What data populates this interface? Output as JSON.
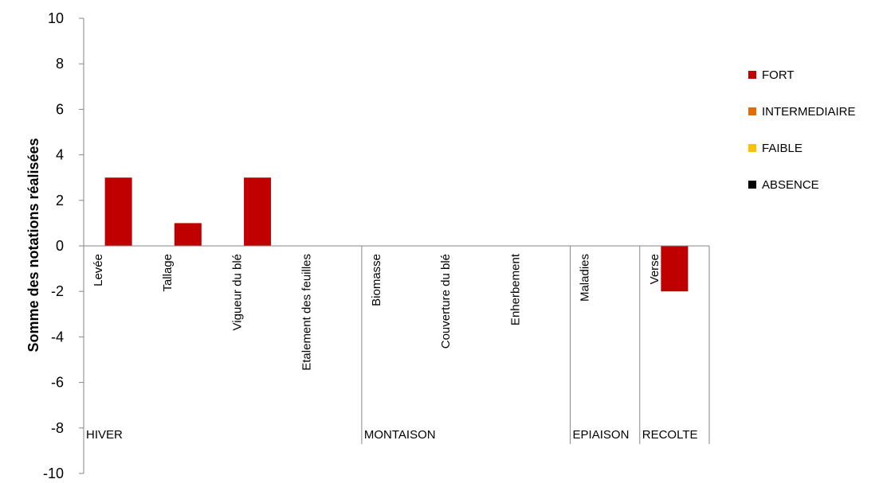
{
  "chart_data": {
    "type": "bar",
    "ylabel": "Somme des notations réalisées",
    "ylim": [
      -10,
      10
    ],
    "y_ticks": [
      "10",
      "8",
      "6",
      "4",
      "2",
      "0",
      "-2",
      "-4",
      "-6",
      "-8",
      "-10"
    ],
    "categories": [
      "Levée",
      "Tallage",
      "Vigueur du blé",
      "Etalement des feuilles",
      "Biomasse",
      "Couverture du blé",
      "Enherbement",
      "Maladies",
      "Verse"
    ],
    "groups": [
      {
        "label": "HIVER",
        "count": 4
      },
      {
        "label": "MONTAISON",
        "count": 3
      },
      {
        "label": "EPIAISON",
        "count": 1
      },
      {
        "label": "RECOLTE",
        "count": 1
      }
    ],
    "series": [
      {
        "name": "FORT",
        "color": "#c00000",
        "values": [
          3,
          1,
          3,
          0,
          0,
          0,
          0,
          0,
          -2
        ]
      },
      {
        "name": "INTERMEDIAIRE",
        "color": "#e36c09",
        "values": [
          0,
          0,
          0,
          0,
          0,
          0,
          0,
          0,
          0
        ]
      },
      {
        "name": "FAIBLE",
        "color": "#ffc000",
        "values": [
          0,
          0,
          0,
          0,
          0,
          0,
          0,
          0,
          0
        ]
      },
      {
        "name": "ABSENCE",
        "color": "#000000",
        "values": [
          0,
          0,
          0,
          0,
          0,
          0,
          0,
          0,
          0
        ]
      }
    ],
    "grid": false,
    "legend_position": "right"
  }
}
